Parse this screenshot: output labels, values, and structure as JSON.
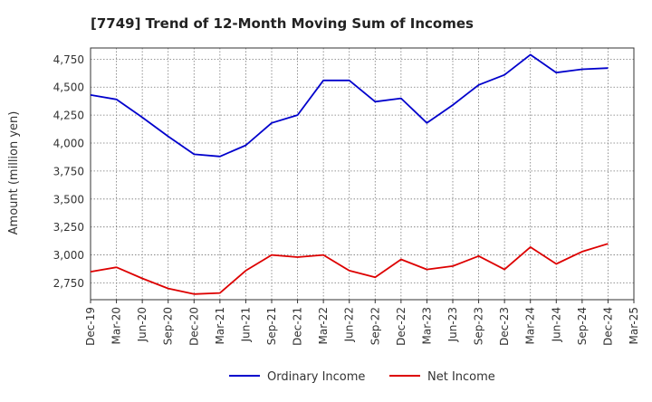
{
  "chart_data": {
    "type": "line",
    "title": "[7749]  Trend of 12-Month Moving Sum of Incomes",
    "xlabel": "",
    "ylabel": "Amount (million yen)",
    "ylim": [
      2600,
      4850
    ],
    "yticks": [
      2750,
      3000,
      3250,
      3500,
      3750,
      4000,
      4250,
      4500,
      4750
    ],
    "ytick_labels": [
      "2,750",
      "3,000",
      "3,250",
      "3,500",
      "3,750",
      "4,000",
      "4,250",
      "4,500",
      "4,750"
    ],
    "categories": [
      "Dec-19",
      "Mar-20",
      "Jun-20",
      "Sep-20",
      "Dec-20",
      "Mar-21",
      "Jun-21",
      "Sep-21",
      "Dec-21",
      "Mar-22",
      "Jun-22",
      "Sep-22",
      "Dec-22",
      "Mar-23",
      "Jun-23",
      "Sep-23",
      "Dec-23",
      "Mar-24",
      "Jun-24",
      "Sep-24",
      "Dec-24",
      "Mar-25"
    ],
    "grid": true,
    "legend_position": "bottom-center",
    "series": [
      {
        "name": "Ordinary Income",
        "color": "#0000cc",
        "values": [
          4430,
          4390,
          4230,
          4060,
          3900,
          3880,
          3980,
          4180,
          4250,
          4560,
          4560,
          4370,
          4400,
          4180,
          4340,
          4520,
          4610,
          4790,
          4630,
          4660,
          4670,
          null
        ]
      },
      {
        "name": "Net Income",
        "color": "#dd0000",
        "values": [
          2850,
          2890,
          2790,
          2700,
          2650,
          2660,
          2860,
          3000,
          2980,
          3000,
          2860,
          2800,
          2960,
          2870,
          2900,
          2990,
          2870,
          3070,
          2920,
          3030,
          3100,
          null
        ]
      }
    ]
  }
}
